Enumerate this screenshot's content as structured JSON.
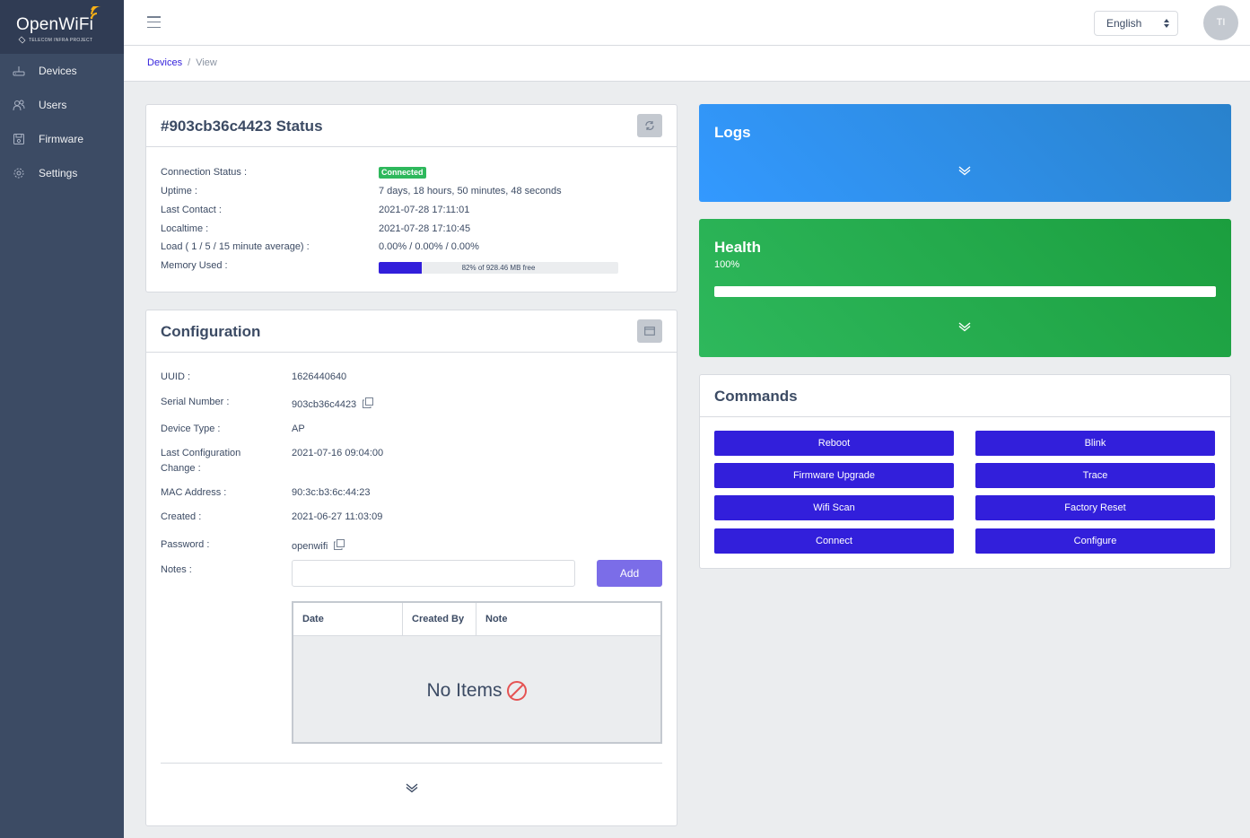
{
  "app": {
    "brand_name": "OpenWiFi",
    "brand_sub": "TELECOM INFRA PROJECT"
  },
  "sidebar": {
    "items": [
      {
        "label": "Devices",
        "icon": "router-icon"
      },
      {
        "label": "Users",
        "icon": "users-icon"
      },
      {
        "label": "Firmware",
        "icon": "save-icon"
      },
      {
        "label": "Settings",
        "icon": "gear-icon"
      }
    ]
  },
  "header": {
    "language": "English",
    "avatar_initials": "TI"
  },
  "breadcrumb": {
    "items": [
      "Devices",
      "View"
    ]
  },
  "status_card": {
    "title": "#903cb36c4423 Status",
    "rows": [
      {
        "label": "Connection Status :",
        "value": "Connected"
      },
      {
        "label": "Uptime :",
        "value": "7 days, 18 hours, 50 minutes, 48 seconds"
      },
      {
        "label": "Last Contact :",
        "value": "2021-07-28 17:11:01"
      },
      {
        "label": "Localtime :",
        "value": "2021-07-28 17:10:45"
      },
      {
        "label": "Load ( 1 / 5 / 15 minute average) :",
        "value": "0.00% / 0.00% / 0.00%"
      },
      {
        "label": "Memory Used :",
        "value": "82% of 928.46 MB free"
      }
    ],
    "memory_used_fraction": 0.18,
    "status_color": "#2eb85c"
  },
  "config_card": {
    "title": "Configuration",
    "rows": [
      {
        "label": "UUID :",
        "value": "1626440640"
      },
      {
        "label": "Serial Number :",
        "value": "903cb36c4423"
      },
      {
        "label": "Device Type :",
        "value": "AP"
      },
      {
        "label": "Last Configuration Change :",
        "value": "2021-07-16 09:04:00"
      },
      {
        "label": "MAC Address :",
        "value": "90:3c:b3:6c:44:23"
      },
      {
        "label": "Created :",
        "value": "2021-06-27 11:03:09"
      },
      {
        "label": "Password :",
        "value": "openwifi"
      },
      {
        "label": "Notes :",
        "value": ""
      }
    ],
    "notes_input_value": "",
    "add_label": "Add",
    "table": {
      "columns": [
        "Date",
        "Created By",
        "Note"
      ],
      "empty_text": "No Items"
    }
  },
  "logs_card": {
    "title": "Logs",
    "color": "#3399ff"
  },
  "health_card": {
    "title": "Health",
    "percent_text": "100%",
    "health_fraction": 1.0,
    "color": "#2eb85c"
  },
  "commands_card": {
    "title": "Commands",
    "buttons": [
      "Reboot",
      "Blink",
      "Firmware Upgrade",
      "Trace",
      "Wifi Scan",
      "Factory Reset",
      "Connect",
      "Configure"
    ],
    "button_color": "#321fdb"
  }
}
